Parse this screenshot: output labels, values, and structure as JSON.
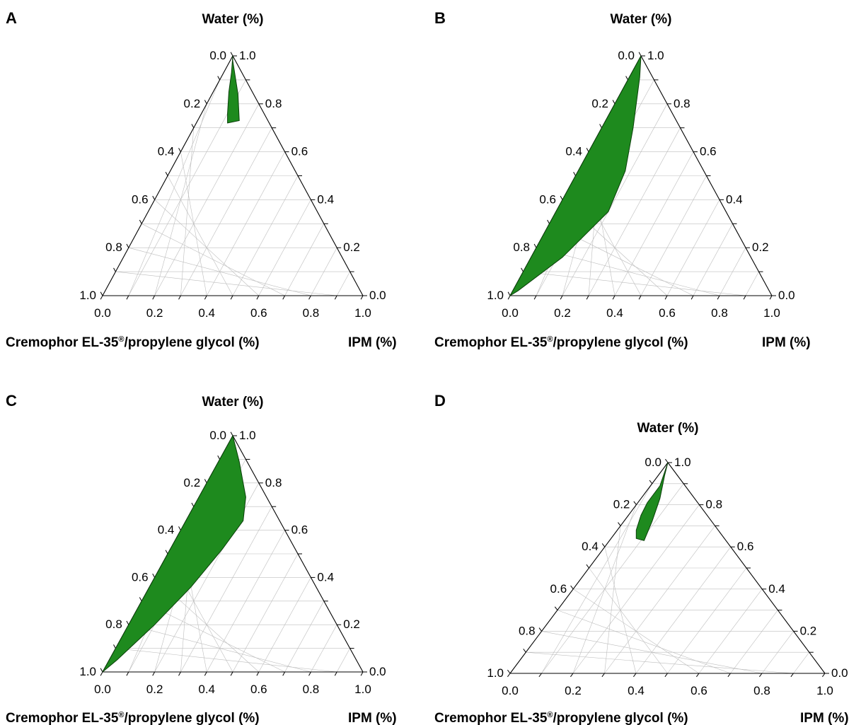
{
  "chart_data": [
    {
      "type": "ternary",
      "panel_label": "A",
      "axes": {
        "top": "Water (%)",
        "bottom_left": "Cremophor EL-35®/propylene glycol (%)",
        "bottom_right": "IPM (%)"
      },
      "ticks": [
        "0.0",
        "0.2",
        "0.4",
        "0.6",
        "0.8",
        "1.0"
      ],
      "grid": true,
      "region_color": "#1e8a1e",
      "region": [
        {
          "s": 0.0,
          "i": 0.0,
          "w": 1.0
        },
        {
          "s": 0.04,
          "i": 0.03,
          "w": 0.93
        },
        {
          "s": 0.09,
          "i": 0.06,
          "w": 0.85
        },
        {
          "s": 0.14,
          "i": 0.1,
          "w": 0.76
        },
        {
          "s": 0.16,
          "i": 0.12,
          "w": 0.72
        },
        {
          "s": 0.11,
          "i": 0.16,
          "w": 0.73
        },
        {
          "s": 0.06,
          "i": 0.1,
          "w": 0.84
        },
        {
          "s": 0.01,
          "i": 0.01,
          "w": 0.98
        }
      ]
    },
    {
      "type": "ternary",
      "panel_label": "B",
      "axes": {
        "top": "Water (%)",
        "bottom_left": "Cremophor EL-35®/propylene glycol (%)",
        "bottom_right": "IPM (%)"
      },
      "ticks": [
        "0.0",
        "0.2",
        "0.4",
        "0.6",
        "0.8",
        "1.0"
      ],
      "grid": true,
      "region_color": "#1e8a1e",
      "region": [
        {
          "s": 0.0,
          "i": 0.0,
          "w": 1.0
        },
        {
          "s": 0.05,
          "i": 0.04,
          "w": 0.91
        },
        {
          "s": 0.18,
          "i": 0.12,
          "w": 0.7
        },
        {
          "s": 0.3,
          "i": 0.18,
          "w": 0.52
        },
        {
          "s": 0.45,
          "i": 0.2,
          "w": 0.35
        },
        {
          "s": 0.72,
          "i": 0.12,
          "w": 0.16
        },
        {
          "s": 0.96,
          "i": 0.02,
          "w": 0.02
        },
        {
          "s": 1.0,
          "i": 0.0,
          "w": 0.0
        },
        {
          "s": 0.6,
          "i": 0.0,
          "w": 0.4
        },
        {
          "s": 0.3,
          "i": 0.0,
          "w": 0.7
        }
      ]
    },
    {
      "type": "ternary",
      "panel_label": "C",
      "axes": {
        "top": "Water (%)",
        "bottom_left": "Cremophor EL-35®/propylene glycol (%)",
        "bottom_right": "IPM (%)"
      },
      "ticks": [
        "0.0",
        "0.2",
        "0.4",
        "0.6",
        "0.8",
        "1.0"
      ],
      "grid": true,
      "region_color": "#1e8a1e",
      "region": [
        {
          "s": 0.0,
          "i": 0.0,
          "w": 1.0
        },
        {
          "s": 0.03,
          "i": 0.08,
          "w": 0.89
        },
        {
          "s": 0.08,
          "i": 0.18,
          "w": 0.74
        },
        {
          "s": 0.14,
          "i": 0.22,
          "w": 0.64
        },
        {
          "s": 0.28,
          "i": 0.2,
          "w": 0.52
        },
        {
          "s": 0.48,
          "i": 0.16,
          "w": 0.36
        },
        {
          "s": 0.7,
          "i": 0.1,
          "w": 0.2
        },
        {
          "s": 0.92,
          "i": 0.03,
          "w": 0.05
        },
        {
          "s": 1.0,
          "i": 0.0,
          "w": 0.0
        },
        {
          "s": 0.55,
          "i": 0.0,
          "w": 0.45
        },
        {
          "s": 0.2,
          "i": 0.0,
          "w": 0.8
        }
      ]
    },
    {
      "type": "ternary",
      "panel_label": "D",
      "axes": {
        "top": "Water (%)",
        "bottom_left": "Cremophor EL-35®/propylene glycol (%)",
        "bottom_right": "IPM (%)"
      },
      "ticks": [
        "0.0",
        "0.2",
        "0.4",
        "0.6",
        "0.8",
        "1.0"
      ],
      "grid": true,
      "region_color": "#1e8a1e",
      "region": [
        {
          "s": 0.0,
          "i": 0.0,
          "w": 1.0
        },
        {
          "s": 0.08,
          "i": 0.03,
          "w": 0.89
        },
        {
          "s": 0.16,
          "i": 0.03,
          "w": 0.81
        },
        {
          "s": 0.21,
          "i": 0.04,
          "w": 0.75
        },
        {
          "s": 0.26,
          "i": 0.06,
          "w": 0.68
        },
        {
          "s": 0.28,
          "i": 0.08,
          "w": 0.64
        },
        {
          "s": 0.26,
          "i": 0.11,
          "w": 0.63
        },
        {
          "s": 0.19,
          "i": 0.09,
          "w": 0.72
        },
        {
          "s": 0.11,
          "i": 0.06,
          "w": 0.83
        },
        {
          "s": 0.04,
          "i": 0.02,
          "w": 0.94
        }
      ]
    }
  ]
}
